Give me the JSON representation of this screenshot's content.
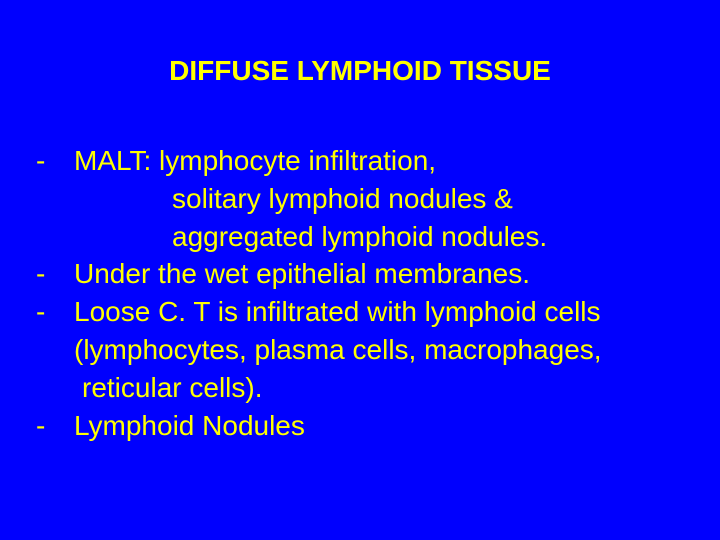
{
  "slide": {
    "title": "DIFFUSE LYMPHOID TISSUE",
    "background_color": "#0000fe",
    "text_color": "#ffff00",
    "title_fontsize": 28,
    "body_fontsize": 28,
    "font_family": "Arial",
    "lines": [
      {
        "dash": "-",
        "text": "MALT: lymphocyte infiltration,"
      },
      {
        "dash": "",
        "text": "solitary lymphoid nodules &",
        "indent": "indent1"
      },
      {
        "dash": "",
        "text": "aggregated lymphoid nodules.",
        "indent": "indent1"
      },
      {
        "dash": "-",
        "text": "Under the wet epithelial membranes."
      },
      {
        "dash": "-",
        "text": "Loose C. T is infiltrated with lymphoid cells"
      },
      {
        "dash": "",
        "text": "(lymphocytes, plasma cells, macrophages,",
        "indent": "indent-paren"
      },
      {
        "dash": "",
        "text": " reticular cells).",
        "indent": "indent-ret"
      },
      {
        "dash": "-",
        "text": "Lymphoid Nodules"
      }
    ]
  }
}
